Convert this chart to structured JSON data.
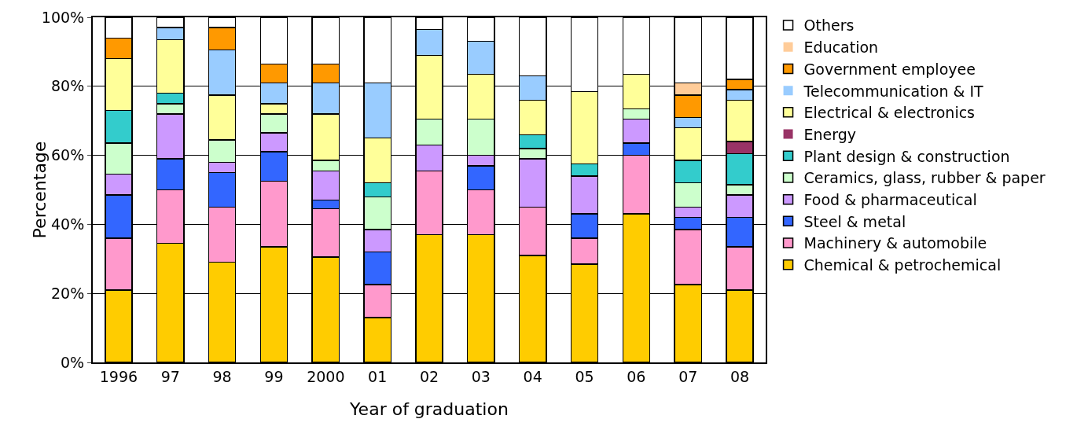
{
  "chart_data": {
    "type": "bar",
    "stacked": true,
    "xlabel": "Year of graduation",
    "ylabel": "Percentage",
    "categories": [
      "1996",
      "97",
      "98",
      "99",
      "2000",
      "01",
      "02",
      "03",
      "04",
      "05",
      "06",
      "07",
      "08"
    ],
    "ylim": [
      0,
      100
    ],
    "yticks": [
      {
        "value": 0,
        "label": "0%"
      },
      {
        "value": 20,
        "label": "20%"
      },
      {
        "value": 40,
        "label": "40%"
      },
      {
        "value": 60,
        "label": "60%"
      },
      {
        "value": 80,
        "label": "80%"
      },
      {
        "value": 100,
        "label": "100%"
      }
    ],
    "grid": "y",
    "legend": "right",
    "series": [
      {
        "name": "Chemical & petrochemical",
        "color": "#ffcc00",
        "values": [
          21,
          34.5,
          29,
          33.5,
          30.5,
          13,
          37,
          37,
          31,
          28.5,
          43,
          22.5,
          21
        ]
      },
      {
        "name": "Machinery & automobile",
        "color": "#ff99cc",
        "values": [
          15,
          15.5,
          16,
          19,
          14,
          9.5,
          18.5,
          13,
          14,
          7.5,
          17,
          16,
          12.5
        ]
      },
      {
        "name": "Steel & metal",
        "color": "#3366ff",
        "values": [
          12.5,
          9,
          10,
          8.5,
          2.5,
          9.5,
          0,
          7,
          0,
          7,
          3.5,
          3.5,
          8.5
        ]
      },
      {
        "name": "Food & pharmaceutical",
        "color": "#cc99ff",
        "values": [
          6,
          13,
          3,
          5.5,
          8.5,
          6.5,
          7.5,
          3,
          14,
          11,
          7,
          3,
          6.5
        ]
      },
      {
        "name": "Ceramics, glass, rubber & paper",
        "color": "#ccffcc",
        "values": [
          9,
          3,
          6.5,
          5.5,
          3,
          9.5,
          7.5,
          10.5,
          3,
          0,
          3,
          7,
          3
        ]
      },
      {
        "name": "Plant design & construction",
        "color": "#33cccc",
        "values": [
          9.5,
          3,
          0,
          0,
          0,
          4,
          0,
          0,
          4,
          3.5,
          0,
          6.5,
          9
        ]
      },
      {
        "name": "Energy",
        "color": "#993366",
        "values": [
          0,
          0,
          0,
          0,
          0,
          0,
          0,
          0,
          0,
          0,
          0,
          0,
          3.5
        ]
      },
      {
        "name": "Electrical & electronics",
        "color": "#ffff99",
        "values": [
          15,
          15.5,
          13,
          3,
          13.5,
          13,
          18.5,
          13,
          10,
          21,
          10,
          9.5,
          12
        ]
      },
      {
        "name": "Telecommunication & IT",
        "color": "#99ccff",
        "values": [
          0,
          3.5,
          13,
          6,
          9,
          16,
          7.5,
          9.5,
          7,
          0,
          0,
          3,
          3
        ]
      },
      {
        "name": "Government employee",
        "color": "#ff9900",
        "values": [
          6,
          0,
          6.5,
          5.5,
          5.5,
          0,
          0,
          0,
          0,
          0,
          0,
          6.5,
          3
        ]
      },
      {
        "name": "Education",
        "color": "#ffcc99",
        "values": [
          0,
          0,
          0,
          0,
          0,
          0,
          0,
          0,
          0,
          0,
          0,
          3.5,
          0
        ]
      },
      {
        "name": "Others",
        "color": "#ffffff",
        "values": [
          6,
          3,
          3,
          13.5,
          13.5,
          19,
          3.5,
          7,
          17,
          21.5,
          16.5,
          19,
          18
        ]
      }
    ]
  }
}
